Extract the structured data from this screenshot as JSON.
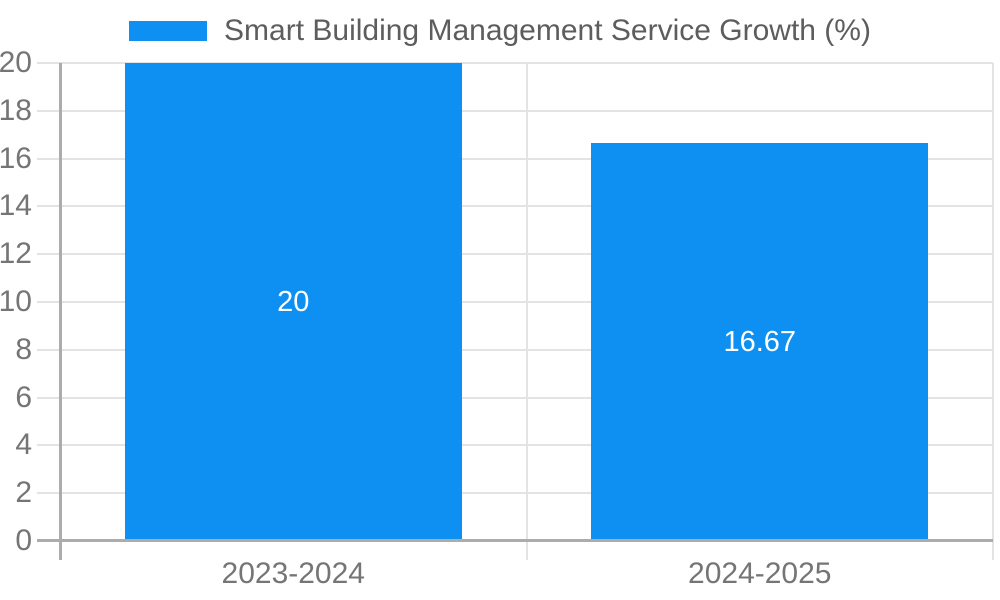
{
  "window": {
    "background": "#FFFFFF"
  },
  "legend": {
    "swatch_color": "#0D90F2",
    "label": "Smart Building Management Service Growth (%)"
  },
  "chart_data": {
    "type": "bar",
    "title": "Smart Building Management Service Growth (%)",
    "categories": [
      "2023-2024",
      "2024-2025"
    ],
    "values": [
      20,
      16.67
    ],
    "labels": [
      "20",
      "16.67"
    ],
    "series": [
      {
        "name": "Smart Building Management Service Growth (%)",
        "values": [
          20,
          16.67
        ]
      }
    ],
    "xlabel": "",
    "ylabel": "",
    "ylim": [
      0,
      20
    ],
    "yticks": [
      0,
      2,
      4,
      6,
      8,
      10,
      12,
      14,
      16,
      18,
      20
    ],
    "grid": true,
    "legend_position": "top-center",
    "bar_label_position": "center-inside",
    "colors": {
      "bar": "#0D90F2",
      "bar_label": "#FFFFFF",
      "grid": "#E3E3E3",
      "axis": "#ACACAC",
      "tick_label": "#757575",
      "title": "#5D5D5D",
      "background": "#FFFFFF"
    }
  }
}
